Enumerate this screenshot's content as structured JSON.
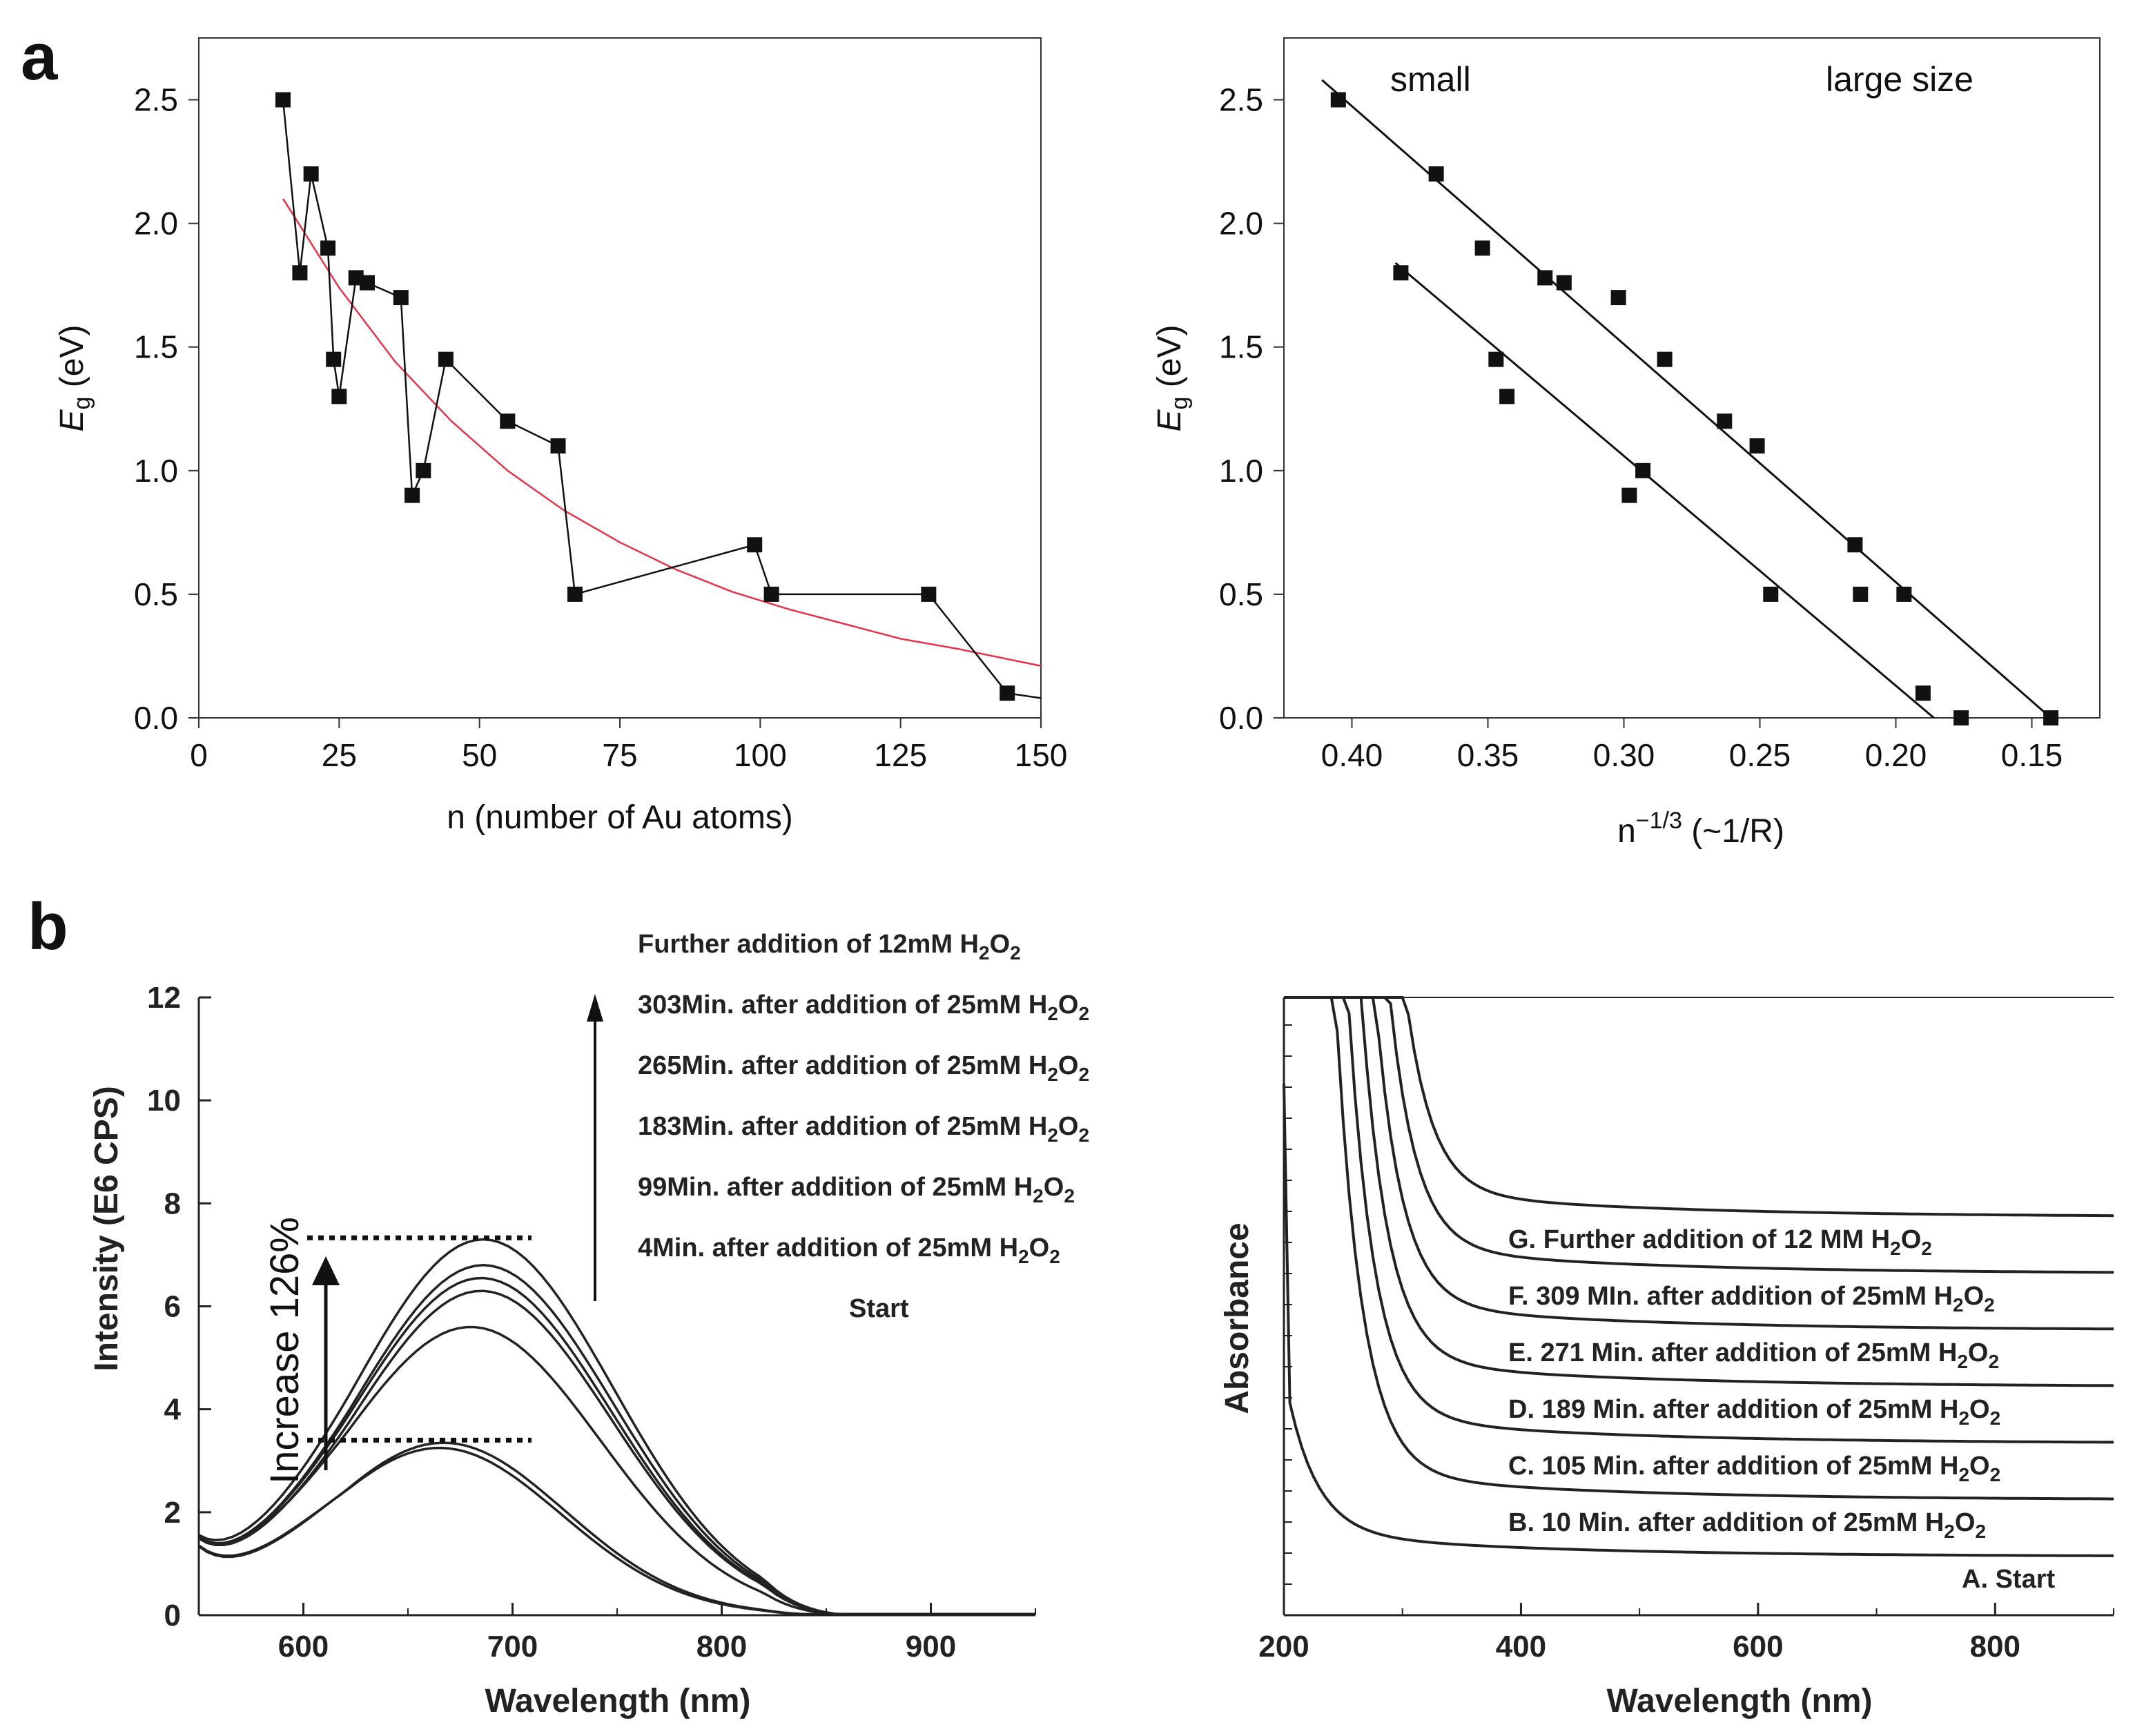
{
  "labels": {
    "panel_a": "a",
    "panel_b": "b"
  },
  "colors": {
    "fit_red": "#e8334a",
    "ink": "#111111",
    "curve": "#222222"
  },
  "chart_data": [
    {
      "id": "a1",
      "type": "scatter",
      "xlabel": "n (number of Au atoms)",
      "ylabel_main": "E",
      "ylabel_sub": "g",
      "ylabel_unit": " (eV)",
      "xlim": [
        0,
        150
      ],
      "ylim": [
        0,
        2.75
      ],
      "xticks": [
        0,
        25,
        50,
        75,
        100,
        125,
        150
      ],
      "xtick_labels": [
        "0",
        "25",
        "50",
        "75",
        "100",
        "125",
        "150"
      ],
      "yticks": [
        0,
        0.5,
        1.0,
        1.5,
        2.0,
        2.5
      ],
      "ytick_labels": [
        "0.0",
        "0.5",
        "1.0",
        "1.5",
        "2.0",
        "2.5"
      ],
      "series": [
        {
          "name": "data",
          "x": [
            15,
            18,
            20,
            23,
            24,
            25,
            28,
            30,
            36,
            38,
            40,
            44,
            55,
            64,
            67,
            99,
            102,
            130,
            144,
            150
          ],
          "y": [
            2.5,
            1.8,
            2.2,
            1.9,
            1.45,
            1.3,
            1.78,
            1.76,
            1.7,
            0.9,
            1.0,
            1.45,
            1.2,
            1.1,
            0.5,
            0.7,
            0.5,
            0.5,
            0.1,
            0.08
          ]
        },
        {
          "name": "exponential fit",
          "x": [
            15,
            25,
            35,
            45,
            55,
            65,
            75,
            85,
            95,
            105,
            115,
            125,
            135,
            150
          ],
          "y": [
            2.1,
            1.74,
            1.44,
            1.2,
            1.0,
            0.84,
            0.71,
            0.6,
            0.51,
            0.44,
            0.38,
            0.32,
            0.28,
            0.21
          ]
        }
      ]
    },
    {
      "id": "a2",
      "type": "scatter",
      "xlabel_base": "n",
      "xlabel_sup": "−1/3",
      "xlabel_rest": " (~1/R)",
      "ylabel_main": "E",
      "ylabel_sub": "g",
      "ylabel_unit": " (eV)",
      "xlim": [
        0.425,
        0.125
      ],
      "ylim": [
        0,
        2.75
      ],
      "xticks": [
        0.4,
        0.35,
        0.3,
        0.25,
        0.2,
        0.15
      ],
      "xtick_labels": [
        "0.40",
        "0.35",
        "0.30",
        "0.25",
        "0.20",
        "0.15"
      ],
      "yticks": [
        0,
        0.5,
        1.0,
        1.5,
        2.0,
        2.5
      ],
      "ytick_labels": [
        "0.0",
        "0.5",
        "1.0",
        "1.5",
        "2.0",
        "2.5"
      ],
      "annotations": [
        "small",
        "large size"
      ],
      "points": {
        "x": [
          0.405,
          0.369,
          0.352,
          0.329,
          0.322,
          0.302,
          0.285,
          0.263,
          0.251,
          0.215,
          0.213,
          0.197,
          0.382,
          0.347,
          0.343,
          0.298,
          0.293,
          0.246,
          0.19,
          0.176,
          0.143
        ],
        "y": [
          2.5,
          2.2,
          1.9,
          1.78,
          1.76,
          1.7,
          1.45,
          1.2,
          1.1,
          0.7,
          0.5,
          0.5,
          1.8,
          1.45,
          1.3,
          0.9,
          1.0,
          0.5,
          0.1,
          0.0,
          0.0
        ]
      },
      "fit_lines": [
        {
          "name": "upper fit",
          "x": [
            0.411,
            0.143
          ],
          "y": [
            2.58,
            0.0
          ]
        },
        {
          "name": "lower fit",
          "x": [
            0.384,
            0.186
          ],
          "y": [
            1.84,
            0.0
          ]
        }
      ]
    },
    {
      "id": "b1",
      "type": "line",
      "xlabel": "Wavelength (nm)",
      "ylabel": "Intensity (E6 CPS)",
      "xlim": [
        550,
        950
      ],
      "ylim": [
        0,
        12
      ],
      "xticks": [
        600,
        700,
        800,
        900
      ],
      "xtick_labels": [
        "600",
        "700",
        "800",
        "900"
      ],
      "yticks": [
        0,
        2,
        4,
        6,
        8,
        10,
        12
      ],
      "ytick_labels": [
        "0",
        "2",
        "4",
        "6",
        "8",
        "10",
        "12"
      ],
      "annotation": "Increase 126%",
      "dotted_levels": [
        7.33,
        3.4
      ],
      "legend": [
        {
          "text": "Further addition of 12mM H",
          "sub": "2",
          "mid": "O",
          "sub2": "2"
        },
        {
          "text": "303Min. after addition of 25mM H",
          "sub": "2",
          "mid": "O",
          "sub2": "2"
        },
        {
          "text": "265Min. after addition of 25mM H",
          "sub": "2",
          "mid": "O",
          "sub2": "2"
        },
        {
          "text": "183Min. after addition of 25mM H",
          "sub": "2",
          "mid": "O",
          "sub2": "2"
        },
        {
          "text": "99Min. after addition of 25mM H",
          "sub": "2",
          "mid": "O",
          "sub2": "2"
        },
        {
          "text": "4Min. after addition of 25mM H",
          "sub": "2",
          "mid": "O",
          "sub2": "2"
        },
        {
          "text": "Start",
          "sub": "",
          "mid": "",
          "sub2": ""
        }
      ],
      "series": [
        {
          "name": "Start",
          "peak_x": 665,
          "peak_y": 3.25,
          "width": 58
        },
        {
          "name": "4Min.",
          "peak_x": 667,
          "peak_y": 3.35,
          "width": 58
        },
        {
          "name": "99Min.",
          "peak_x": 680,
          "peak_y": 5.6,
          "width": 62
        },
        {
          "name": "183Min.",
          "peak_x": 685,
          "peak_y": 6.3,
          "width": 62
        },
        {
          "name": "265Min.",
          "peak_x": 685,
          "peak_y": 6.55,
          "width": 62
        },
        {
          "name": "303Min.",
          "peak_x": 686,
          "peak_y": 6.8,
          "width": 62
        },
        {
          "name": "Further addition",
          "peak_x": 686,
          "peak_y": 7.3,
          "width": 62
        }
      ]
    },
    {
      "id": "b2",
      "type": "line",
      "xlabel": "Wavelength (nm)",
      "ylabel": "Absorbance",
      "xlim": [
        200,
        900
      ],
      "xticks": [
        200,
        400,
        600,
        800
      ],
      "xtick_labels": [
        "200",
        "400",
        "600",
        "800"
      ],
      "series": [
        {
          "letter": "G.",
          "text": "Further addition of 12 MM H",
          "sub": "2",
          "mid": "O",
          "sub2": "2",
          "level": 10
        },
        {
          "letter": "F.",
          "text": "309 MIn. after addition of 25mM H",
          "sub": "2",
          "mid": "O",
          "sub2": "2",
          "level": 9
        },
        {
          "letter": "E.",
          "text": "271 Min. after addition of 25mM H",
          "sub": "2",
          "mid": "O",
          "sub2": "2",
          "level": 8
        },
        {
          "letter": "D.",
          "text": "189 Min. after addition of 25mM H",
          "sub": "2",
          "mid": "O",
          "sub2": "2",
          "level": 7
        },
        {
          "letter": "C.",
          "text": "105 Min. after addition of 25mM H",
          "sub": "2",
          "mid": "O",
          "sub2": "2",
          "level": 6
        },
        {
          "letter": "B.",
          "text": "10 Min. after addition of 25mM H",
          "sub": "2",
          "mid": "O",
          "sub2": "2",
          "level": 5
        },
        {
          "letter": "A.",
          "text": "Start",
          "sub": "",
          "mid": "",
          "sub2": "",
          "level": 4
        }
      ]
    }
  ]
}
